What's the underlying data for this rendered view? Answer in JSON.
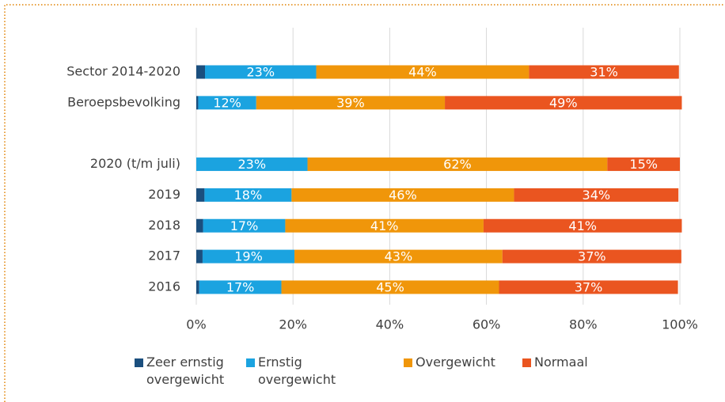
{
  "chart_data": {
    "type": "stacked-bar-horizontal",
    "categories": [
      "Sector 2014-2020",
      "Beroepsbevolking",
      null,
      "2020 (t/m juli)",
      "2019",
      "2018",
      "2017",
      "2016"
    ],
    "series": [
      {
        "name": "Zeer ernstig overgewicht",
        "color": "#1b4f7e",
        "values": [
          1.8,
          0.4,
          null,
          0,
          1.7,
          1.4,
          1.3,
          0.6
        ]
      },
      {
        "name": "Ernstig overgewicht",
        "color": "#1ba3e0",
        "values": [
          23,
          12,
          null,
          23,
          18,
          17,
          19,
          17
        ],
        "value_labels": [
          "23%",
          "12%",
          null,
          "23%",
          "18%",
          "17%",
          "19%",
          "17%"
        ]
      },
      {
        "name": "Overgewicht",
        "color": "#f0960a",
        "values": [
          44,
          39,
          null,
          62,
          46,
          41,
          43,
          45
        ],
        "value_labels": [
          "44%",
          "39%",
          null,
          "62%",
          "46%",
          "41%",
          "43%",
          "45%"
        ]
      },
      {
        "name": "Normaal",
        "color": "#ea5520",
        "values": [
          31,
          49,
          null,
          15,
          34,
          41,
          37,
          37
        ],
        "value_labels": [
          "31%",
          "49%",
          null,
          "15%",
          "34%",
          "41%",
          "37%",
          "37%"
        ]
      }
    ],
    "xlim": [
      0,
      100
    ],
    "xticks": [
      {
        "value": 0,
        "label": "0%"
      },
      {
        "value": 20,
        "label": "20%"
      },
      {
        "value": 40,
        "label": "40%"
      },
      {
        "value": 60,
        "label": "60%"
      },
      {
        "value": 80,
        "label": "80%"
      },
      {
        "value": 100,
        "label": "100%"
      }
    ],
    "grid": true,
    "legend": "bottom"
  }
}
